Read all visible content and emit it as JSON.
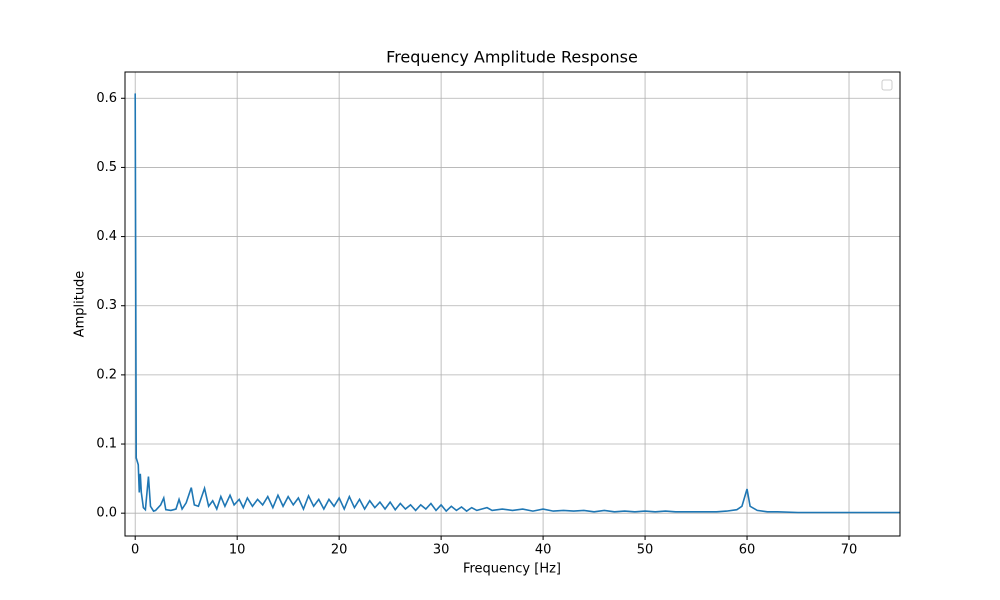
{
  "chart_data": {
    "type": "line",
    "title": "Frequency Amplitude Response",
    "x_label": "Frequency [Hz]",
    "y_label": "Amplitude",
    "xlim": [
      -1,
      75
    ],
    "ylim": [
      -0.033,
      0.638
    ],
    "xticks": [
      0,
      10,
      20,
      30,
      40,
      50,
      60,
      70
    ],
    "yticks": [
      {
        "value": 0,
        "label": "0.0"
      },
      0.1,
      0.2,
      0.3,
      0.4,
      0.5,
      0.6
    ],
    "grid": true,
    "legend": "upper right",
    "series": [
      {
        "color": "#1f77b4",
        "x": [
          0,
          0.1,
          0.3,
          0.4,
          0.5,
          0.6,
          0.8,
          1.0,
          1.3,
          1.5,
          1.8,
          2.0,
          2.5,
          2.8,
          3.0,
          3.5,
          4.0,
          4.3,
          4.6,
          5.0,
          5.5,
          5.8,
          6.2,
          6.8,
          7.2,
          7.6,
          8.0,
          8.4,
          8.8,
          9.3,
          9.7,
          10.2,
          10.6,
          11.0,
          11.5,
          12.0,
          12.5,
          13.0,
          13.5,
          14.0,
          14.5,
          15.0,
          15.5,
          16.0,
          16.5,
          17.0,
          17.5,
          18.0,
          18.5,
          19.0,
          19.5,
          20.0,
          20.5,
          21.0,
          21.5,
          22.0,
          22.5,
          23.0,
          23.5,
          24.0,
          24.5,
          25.0,
          25.5,
          26.0,
          26.5,
          27.0,
          27.5,
          28.0,
          28.5,
          29.0,
          29.5,
          30.0,
          30.5,
          31.0,
          31.5,
          32.0,
          32.5,
          33.0,
          33.5,
          34.0,
          34.5,
          35,
          36,
          37,
          38,
          39,
          40,
          41,
          42,
          43,
          44,
          45,
          46,
          47,
          48,
          49,
          50,
          51,
          52,
          53,
          54,
          55,
          56,
          57,
          58,
          59,
          59.5,
          60,
          60.3,
          61,
          62,
          63,
          65,
          67,
          70,
          72,
          75
        ],
        "values": [
          0.607,
          0.08,
          0.07,
          0.03,
          0.057,
          0.03,
          0.008,
          0.005,
          0.053,
          0.01,
          0.003,
          0.004,
          0.012,
          0.022,
          0.005,
          0.004,
          0.006,
          0.02,
          0.006,
          0.015,
          0.037,
          0.012,
          0.01,
          0.036,
          0.01,
          0.018,
          0.006,
          0.024,
          0.01,
          0.026,
          0.012,
          0.02,
          0.008,
          0.022,
          0.01,
          0.02,
          0.012,
          0.024,
          0.008,
          0.026,
          0.01,
          0.024,
          0.012,
          0.022,
          0.006,
          0.025,
          0.01,
          0.02,
          0.006,
          0.02,
          0.01,
          0.022,
          0.006,
          0.024,
          0.008,
          0.02,
          0.006,
          0.018,
          0.008,
          0.016,
          0.006,
          0.016,
          0.005,
          0.014,
          0.006,
          0.012,
          0.004,
          0.012,
          0.006,
          0.014,
          0.004,
          0.012,
          0.003,
          0.01,
          0.004,
          0.009,
          0.003,
          0.008,
          0.004,
          0.006,
          0.008,
          0.004,
          0.006,
          0.004,
          0.006,
          0.003,
          0.006,
          0.003,
          0.004,
          0.003,
          0.004,
          0.002,
          0.004,
          0.002,
          0.003,
          0.002,
          0.003,
          0.002,
          0.003,
          0.002,
          0.002,
          0.002,
          0.002,
          0.002,
          0.003,
          0.005,
          0.01,
          0.035,
          0.01,
          0.004,
          0.002,
          0.002,
          0.001,
          0.001,
          0.001,
          0.001,
          0.001
        ]
      }
    ]
  }
}
